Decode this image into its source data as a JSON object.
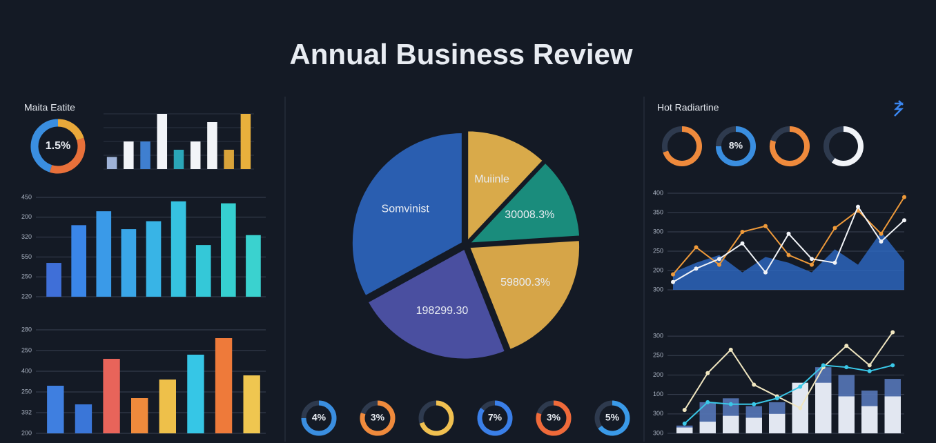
{
  "header": {
    "title": "Annual Business Review"
  },
  "chart_data": [
    {
      "type": "donut",
      "title": "Maita Eatite",
      "label": "1.5%",
      "values": [
        20,
        35,
        45
      ],
      "colors": [
        "#e9a93a",
        "#e8703a",
        "#3a8ee0"
      ]
    },
    {
      "type": "bar",
      "categories": [
        null,
        null,
        null,
        null,
        null,
        null,
        null,
        null,
        null
      ],
      "values": [
        22,
        50,
        50,
        100,
        35,
        50,
        85,
        35,
        100
      ],
      "colors": [
        "#9fb3d8",
        "#f2f4f8",
        "#3f7fd0",
        "#f2f4f8",
        "#2aa6b8",
        "#f2f4f8",
        "#f2f4f8",
        "#d9a33a",
        "#e8b03c"
      ],
      "ylim": [
        0,
        100
      ],
      "grid": true
    },
    {
      "type": "bar",
      "categories": [
        null,
        null,
        null,
        null,
        null,
        null,
        null,
        null,
        null
      ],
      "values": [
        1.7,
        3.6,
        4.3,
        3.4,
        3.8,
        4.8,
        2.6,
        4.7,
        3.1
      ],
      "colors": [
        "#3f6fd8",
        "#3a86e8",
        "#3a9ae8",
        "#3aa6e8",
        "#38b4e6",
        "#36c2e0",
        "#34c8d8",
        "#36cfd0",
        "#3ad2cf"
      ],
      "ylim": [
        0,
        5
      ],
      "yticks": [
        {
          "value": 0,
          "label": "220"
        },
        {
          "value": 1,
          "label": "250"
        },
        {
          "value": 2,
          "label": "550"
        },
        {
          "value": 3,
          "label": "320"
        },
        {
          "value": 4,
          "label": "200"
        },
        {
          "value": 5,
          "label": "450"
        }
      ],
      "grid": true
    },
    {
      "type": "bar",
      "categories": [
        null,
        null,
        null,
        null,
        null,
        null,
        null,
        null
      ],
      "values": [
        2.3,
        1.4,
        3.6,
        1.7,
        2.6,
        3.8,
        4.6,
        2.8
      ],
      "colors": [
        "#3f7fe0",
        "#3a76d8",
        "#e8645a",
        "#ef8a3c",
        "#eec04a",
        "#36c6e6",
        "#ee7a3a",
        "#efc650"
      ],
      "ylim": [
        0,
        5
      ],
      "yticks": [
        {
          "value": 0,
          "label": "200"
        },
        {
          "value": 1,
          "label": "392"
        },
        {
          "value": 2,
          "label": "250"
        },
        {
          "value": 3,
          "label": "400"
        },
        {
          "value": 4,
          "label": "250"
        },
        {
          "value": 5,
          "label": "280"
        }
      ],
      "grid": true
    },
    {
      "type": "pie",
      "labels": [
        "Muiinle",
        "30008.3%",
        "59800.3%",
        "198299.30",
        "Somvinist"
      ],
      "values": [
        12,
        12,
        20,
        23,
        33
      ],
      "colors": [
        "#d9aa4a",
        "#1a8c7c",
        "#d6a548",
        "#4a4fa0",
        "#2a5eb0"
      ]
    },
    {
      "type": "gauges",
      "center_labels": [
        "4%",
        "3%",
        null,
        "7%",
        "3%",
        "5%"
      ],
      "values": [
        75,
        80,
        70,
        85,
        80,
        65
      ],
      "colors": [
        "#3a8ee0",
        "#ef8a3c",
        "#f0c050",
        "#3a7fe8",
        "#ef6a3a",
        "#3a9ae8"
      ]
    },
    {
      "type": "gauges",
      "title": "Hot Radiartine",
      "center_labels": [
        null,
        "8%",
        null,
        null
      ],
      "values": [
        70,
        75,
        80,
        60
      ],
      "colors": [
        "#ef8a3c",
        "#3a8ee0",
        "#ef8a3c",
        "#f2f4f8"
      ]
    },
    {
      "type": "line",
      "categories": [
        null,
        null,
        null,
        null,
        null,
        null,
        null,
        null,
        null,
        null,
        null
      ],
      "ylim": [
        0,
        5
      ],
      "yticks": [
        {
          "value": 0,
          "label": "300"
        },
        {
          "value": 1,
          "label": "200"
        },
        {
          "value": 2,
          "label": "250"
        },
        {
          "value": 3,
          "label": "300"
        },
        {
          "value": 4,
          "label": "350"
        },
        {
          "value": 5,
          "label": "400"
        }
      ],
      "grid": true,
      "series": [
        {
          "kind": "area",
          "color": "#2f6fd0",
          "values": [
            0.9,
            1.4,
            1.8,
            0.9,
            1.7,
            1.4,
            0.9,
            2.1,
            1.3,
            3.0,
            1.5
          ]
        },
        {
          "kind": "line",
          "color": "#ef9a3a",
          "values": [
            0.8,
            2.2,
            1.3,
            3.0,
            3.3,
            1.8,
            1.3,
            3.2,
            4.1,
            2.9,
            4.8
          ]
        },
        {
          "kind": "line",
          "color": "#f2f4f8",
          "values": [
            0.4,
            1.1,
            1.6,
            2.4,
            0.9,
            2.9,
            1.6,
            1.4,
            4.3,
            2.5,
            3.6
          ]
        }
      ]
    },
    {
      "type": "line",
      "categories": [
        null,
        null,
        null,
        null,
        null,
        null,
        null,
        null,
        null,
        null
      ],
      "ylim": [
        0,
        5.5
      ],
      "yticks": [
        {
          "value": 0,
          "label": "300"
        },
        {
          "value": 1,
          "label": "300"
        },
        {
          "value": 2,
          "label": "100"
        },
        {
          "value": 3,
          "label": "200"
        },
        {
          "value": 4,
          "label": "250"
        },
        {
          "value": 5,
          "label": "300"
        }
      ],
      "grid": true,
      "series": [
        {
          "kind": "bar",
          "color": "#5577b8",
          "values": [
            0.4,
            1.6,
            1.8,
            1.4,
            1.6,
            2.6,
            3.4,
            3.0,
            2.2,
            2.8
          ]
        },
        {
          "kind": "bar",
          "color": "#f2f4f8",
          "values": [
            0.3,
            0.6,
            0.9,
            0.8,
            1.0,
            2.6,
            2.6,
            1.9,
            1.4,
            1.9
          ]
        },
        {
          "kind": "line",
          "color": "#f0e6c0",
          "values": [
            1.2,
            3.1,
            4.3,
            2.5,
            1.9,
            1.3,
            3.4,
            4.5,
            3.5,
            5.2
          ]
        },
        {
          "kind": "line",
          "color": "#3ac8e8",
          "values": [
            0.5,
            1.6,
            1.5,
            1.5,
            1.8,
            2.4,
            3.5,
            3.4,
            3.2,
            3.5
          ]
        }
      ]
    }
  ]
}
